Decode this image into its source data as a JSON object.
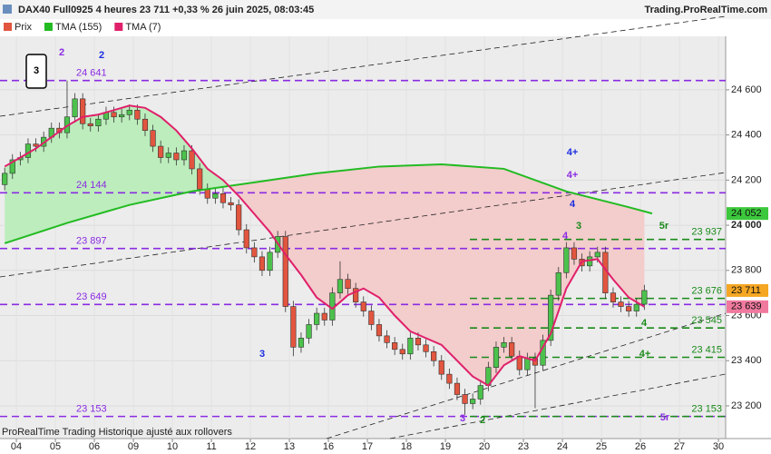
{
  "chart_data": {
    "type": "candlestick",
    "title": "DAX40 Full0925 4 heures 23 711 +0,33 % 26 juin 2025, 08:03:45",
    "source": "Trading.ProRealTime.com",
    "note": "ProRealTime Trading Historique ajusté aux rollovers",
    "categories": [
      "04",
      "05",
      "06",
      "09",
      "10",
      "11",
      "12",
      "13",
      "16",
      "17",
      "18",
      "19",
      "20",
      "23",
      "24",
      "25",
      "26",
      "27",
      "30"
    ],
    "ylim": [
      23055,
      24837
    ],
    "yticks": [
      {
        "value": 23200,
        "label": "23 200"
      },
      {
        "value": 23400,
        "label": "23 400"
      },
      {
        "value": 23600,
        "label": "23 600"
      },
      {
        "value": 23800,
        "label": "23 800"
      },
      {
        "value": 24000,
        "label": "24 000"
      },
      {
        "value": 24200,
        "label": "24 200"
      },
      {
        "value": 24400,
        "label": "24 400"
      },
      {
        "value": 24600,
        "label": "24 600"
      }
    ],
    "grid": true,
    "price": {
      "name": "Prix",
      "up_color": "#4cc24c",
      "down_color": "#e2553f",
      "open": [
        24180,
        24230,
        24290,
        24300,
        24360,
        24350,
        24390,
        24430,
        24410,
        24480,
        24560,
        24450,
        24440,
        24470,
        24500,
        24480,
        24490,
        24510,
        24470,
        24420,
        24350,
        24300,
        24320,
        24290,
        24330,
        24250,
        24160,
        24120,
        24140,
        24100,
        24090,
        23980,
        23900,
        23860,
        23800,
        23880,
        23950,
        23640,
        23460,
        23500,
        23560,
        23610,
        23580,
        23700,
        23760,
        23720,
        23660,
        23620,
        23560,
        23510,
        23480,
        23450,
        23430,
        23500,
        23470,
        23440,
        23400,
        23340,
        23300,
        23250,
        23210,
        23230,
        23290,
        23370,
        23460,
        23480,
        23420,
        23360,
        23410,
        23380,
        23490,
        23690,
        23790,
        23900,
        23850,
        23820,
        23860,
        23880,
        23700,
        23660,
        23640,
        23620,
        23650
      ],
      "high": [
        24255,
        24315,
        24325,
        24385,
        24385,
        24415,
        24455,
        24455,
        24641,
        24585,
        24585,
        24475,
        24495,
        24525,
        24525,
        24515,
        24535,
        24535,
        24495,
        24445,
        24375,
        24345,
        24345,
        24355,
        24355,
        24275,
        24185,
        24165,
        24165,
        24125,
        24115,
        24005,
        23925,
        23885,
        23905,
        23975,
        23975,
        23665,
        23525,
        23585,
        23635,
        23635,
        23725,
        23840,
        23785,
        23745,
        23685,
        23645,
        23585,
        23535,
        23505,
        23475,
        23525,
        23525,
        23495,
        23465,
        23425,
        23365,
        23325,
        23275,
        23255,
        23315,
        23395,
        23485,
        23505,
        23505,
        23445,
        23435,
        23435,
        23515,
        23715,
        23815,
        23925,
        23925,
        23875,
        23885,
        23905,
        23905,
        23725,
        23685,
        23665,
        23675,
        23736
      ],
      "low": [
        24155,
        24205,
        24265,
        24275,
        24325,
        24325,
        24365,
        24385,
        24385,
        24455,
        24425,
        24415,
        24415,
        24445,
        24455,
        24455,
        24465,
        24445,
        24395,
        24325,
        24275,
        24275,
        24265,
        24265,
        24225,
        24135,
        24095,
        24095,
        24075,
        24065,
        23955,
        23875,
        23835,
        23775,
        23775,
        23855,
        23615,
        23420,
        23435,
        23475,
        23535,
        23555,
        23555,
        23675,
        23695,
        23635,
        23595,
        23535,
        23485,
        23455,
        23425,
        23405,
        23405,
        23445,
        23415,
        23375,
        23315,
        23275,
        23225,
        23160,
        23185,
        23205,
        23265,
        23345,
        23435,
        23395,
        23335,
        23335,
        23190,
        23355,
        23465,
        23665,
        23765,
        23825,
        23795,
        23795,
        23835,
        23675,
        23635,
        23615,
        23595,
        23595,
        23625
      ],
      "close": [
        24230,
        24290,
        24300,
        24360,
        24350,
        24390,
        24430,
        24410,
        24480,
        24560,
        24450,
        24440,
        24470,
        24500,
        24480,
        24490,
        24510,
        24470,
        24420,
        24350,
        24300,
        24320,
        24290,
        24330,
        24250,
        24160,
        24120,
        24140,
        24100,
        24090,
        23980,
        23900,
        23860,
        23800,
        23880,
        23950,
        23640,
        23460,
        23500,
        23560,
        23610,
        23580,
        23700,
        23760,
        23720,
        23660,
        23620,
        23560,
        23510,
        23480,
        23450,
        23430,
        23500,
        23470,
        23440,
        23400,
        23340,
        23300,
        23250,
        23210,
        23230,
        23290,
        23370,
        23460,
        23480,
        23420,
        23360,
        23410,
        23380,
        23490,
        23690,
        23790,
        23900,
        23850,
        23820,
        23860,
        23880,
        23700,
        23660,
        23640,
        23620,
        23650,
        23711
      ]
    },
    "overlays": [
      {
        "name": "TMA (155)",
        "color": "#22bb22",
        "x": [
          0,
          8,
          16,
          24,
          32,
          40,
          48,
          56,
          64,
          72,
          80,
          83
        ],
        "values": [
          23920,
          24010,
          24090,
          24150,
          24190,
          24230,
          24260,
          24270,
          24250,
          24150,
          24080,
          24052
        ]
      },
      {
        "name": "TMA (7)",
        "color": "#e0206a",
        "x": [
          0,
          2,
          4,
          6,
          8,
          10,
          12,
          14,
          16,
          18,
          20,
          22,
          24,
          26,
          28,
          30,
          32,
          34,
          36,
          38,
          40,
          42,
          44,
          46,
          48,
          50,
          52,
          54,
          56,
          58,
          60,
          62,
          64,
          66,
          68,
          70,
          72,
          74,
          76,
          78,
          80,
          82
        ],
        "values": [
          24260,
          24300,
          24340,
          24390,
          24440,
          24480,
          24490,
          24510,
          24530,
          24520,
          24480,
          24420,
          24340,
          24250,
          24200,
          24130,
          24050,
          23970,
          23870,
          23780,
          23680,
          23630,
          23690,
          23720,
          23680,
          23600,
          23530,
          23500,
          23470,
          23400,
          23330,
          23290,
          23380,
          23420,
          23400,
          23520,
          23720,
          23840,
          23850,
          23760,
          23680,
          23639
        ]
      }
    ],
    "fill_colors": {
      "above": "#bdedbd",
      "below": "#f3cccc"
    },
    "levels_left": {
      "color": "#8a2be2",
      "items": [
        {
          "value": 24641,
          "label": "24 641"
        },
        {
          "value": 24144,
          "label": "24 144"
        },
        {
          "value": 23897,
          "label": "23 897"
        },
        {
          "value": 23649,
          "label": "23 649"
        },
        {
          "value": 23153,
          "label": "23 153"
        }
      ]
    },
    "levels_right": {
      "color": "#1a8a1a",
      "items": [
        {
          "value": 23937,
          "label": "23 937"
        },
        {
          "value": 23676,
          "label": "23 676"
        },
        {
          "value": 23545,
          "label": "23 545"
        },
        {
          "value": 23415,
          "label": "23 415"
        },
        {
          "value": 23153,
          "label": "23 153"
        }
      ]
    },
    "price_tags": [
      {
        "value": 24052,
        "label": "24 052",
        "color": "#3cc83c"
      },
      {
        "value": 23711,
        "label": "23 711",
        "color": "#f5a623"
      },
      {
        "value": 23639,
        "label": "23 639",
        "color": "#f07a9e"
      }
    ],
    "annotations": [
      {
        "label": "3",
        "color": "#000000"
      },
      {
        "label": "2",
        "color": "#8a2be2"
      },
      {
        "label": "2",
        "color": "#1a2ee0"
      },
      {
        "label": "4+",
        "color": "#1a2ee0"
      },
      {
        "label": "4+",
        "color": "#8a2be2"
      },
      {
        "label": "4",
        "color": "#1a2ee0"
      },
      {
        "label": "4",
        "color": "#8a2be2"
      },
      {
        "label": "3",
        "color": "#1a8a1a"
      },
      {
        "label": "5r",
        "color": "#1a8a1a"
      },
      {
        "label": "4",
        "color": "#1a8a1a"
      },
      {
        "label": "4+",
        "color": "#1a8a1a"
      },
      {
        "label": "5r",
        "color": "#8a2be2"
      },
      {
        "label": "3",
        "color": "#1a2ee0"
      },
      {
        "label": "3",
        "color": "#8a2be2"
      },
      {
        "label": "2",
        "color": "#1a8a1a"
      }
    ]
  }
}
